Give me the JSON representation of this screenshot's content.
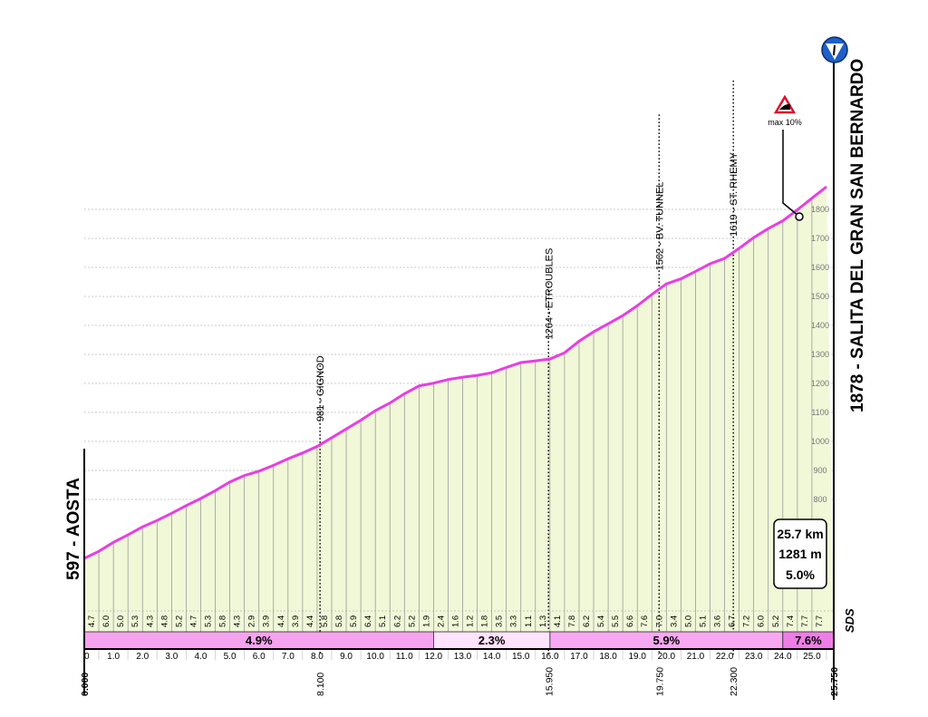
{
  "chart_data": {
    "type": "area",
    "title": "1878 - SALITA DEL GRAN SAN BERNARDO",
    "start_label": "597 - AOSTA",
    "start_elevation": 597,
    "end_elevation": 1878,
    "xlabel": "",
    "ylabel": "",
    "xlim": [
      0,
      25.75
    ],
    "ylim": [
      800,
      1800
    ],
    "grid": true,
    "x_ticks": [
      "0",
      "1.0",
      "2.0",
      "3.0",
      "4.0",
      "5.0",
      "6.0",
      "7.0",
      "8.0",
      "9.0",
      "10.0",
      "11.0",
      "12.0",
      "13.0",
      "14.0",
      "15.0",
      "16.0",
      "17.0",
      "18.0",
      "19.0",
      "20.0",
      "21.0",
      "22.0",
      "23.0",
      "24.0",
      "25.0"
    ],
    "y_ticks": [
      "800",
      "900",
      "1000",
      "1100",
      "1200",
      "1300",
      "1400",
      "1500",
      "1600",
      "1700",
      "1800"
    ],
    "segment_length_km": 0.5,
    "segment_gradients": [
      "4.7",
      "6.0",
      "5.0",
      "5.3",
      "4.3",
      "4.8",
      "5.2",
      "4.7",
      "5.3",
      "5.8",
      "4.3",
      "2.9",
      "3.9",
      "4.4",
      "3.9",
      "4.4",
      "5.8",
      "5.8",
      "5.9",
      "6.4",
      "5.1",
      "6.2",
      "5.2",
      "1.9",
      "2.4",
      "1.6",
      "1.2",
      "1.8",
      "3.5",
      "3.3",
      "1.1",
      "1.3",
      "4.1",
      "7.8",
      "6.2",
      "5.4",
      "5.5",
      "6.6",
      "7.6",
      "7.0",
      "3.4",
      "5.0",
      "5.1",
      "3.6",
      "6.7",
      "7.2",
      "6.0",
      "5.2",
      "7.4",
      "7.7",
      "7.7"
    ],
    "sections": [
      {
        "from": 0,
        "to": 12,
        "label": "4.9%",
        "color": "#f6a3ef"
      },
      {
        "from": 12,
        "to": 16,
        "label": "2.3%",
        "color": "#fde3fb"
      },
      {
        "from": 16,
        "to": 24,
        "label": "5.9%",
        "color": "#f8a8f2"
      },
      {
        "from": 24,
        "to": 25.75,
        "label": "7.6%",
        "color": "#ef7de6"
      }
    ],
    "waypoints": [
      {
        "km": 0,
        "km_label": "0.000"
      },
      {
        "km": 8.1,
        "km_label": "8.100",
        "elevation": 981,
        "label": "981 - GIGNOD"
      },
      {
        "km": 15.95,
        "km_label": "15.950",
        "elevation": 1264,
        "label": "1264 - ETROUBLES"
      },
      {
        "km": 19.75,
        "km_label": "19.750",
        "elevation": 1502,
        "label": "1502 - BV. TUNNEL"
      },
      {
        "km": 22.3,
        "km_label": "22.300",
        "elevation": 1619,
        "label": "1619 - ST. RHEMY"
      },
      {
        "km": 25.75,
        "km_label": "25.750"
      }
    ],
    "max_gradient": {
      "km": 24.7,
      "label": "max 10%"
    },
    "summary": {
      "distance": "25.7 km",
      "gain": "1281 m",
      "avg": "5.0%"
    },
    "colors": {
      "line": "#e83ee0",
      "fill": "#f0f8d8",
      "accent": "#1e5fc8"
    },
    "logo": "SDS"
  }
}
